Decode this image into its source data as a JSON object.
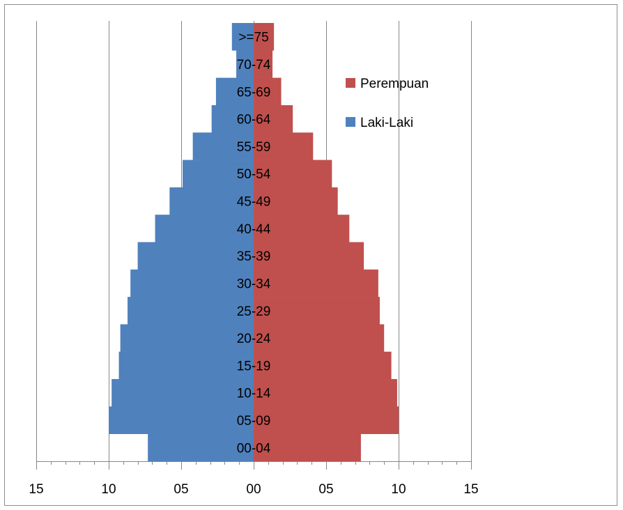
{
  "chart_data": {
    "type": "bar",
    "orientation": "horizontal",
    "layout": "population-pyramid",
    "categories": [
      "00-04",
      "05-09",
      "10-14",
      "15-19",
      "20-24",
      "25-29",
      "30-34",
      "35-39",
      "40-44",
      "45-49",
      "50-54",
      "55-59",
      "60-64",
      "65-69",
      "70-74",
      ">=75"
    ],
    "series": [
      {
        "name": "Laki-Laki",
        "side": "left",
        "color": "#4f81bd",
        "values": [
          7.3,
          10.0,
          9.8,
          9.3,
          9.2,
          8.7,
          8.5,
          8.0,
          6.8,
          5.8,
          4.9,
          4.2,
          2.9,
          2.6,
          1.2,
          1.5
        ]
      },
      {
        "name": "Perempuan",
        "side": "right",
        "color": "#c0504d",
        "values": [
          7.4,
          10.0,
          9.9,
          9.5,
          9.0,
          8.7,
          8.6,
          7.6,
          6.6,
          5.8,
          5.4,
          4.1,
          2.7,
          1.9,
          1.3,
          1.4
        ]
      }
    ],
    "xlim": [
      -15,
      15
    ],
    "x_ticks": [
      -15,
      -10,
      -5,
      0,
      5,
      10,
      15
    ],
    "x_tick_labels": [
      "15",
      "10",
      "05",
      "00",
      "05",
      "10",
      "15"
    ],
    "minor_tick_step": 1,
    "gridlines": "vertical-major",
    "gridline_color": "#868686",
    "title": "",
    "xlabel": "",
    "ylabel": "",
    "legend": {
      "position": "right",
      "entries": [
        {
          "label": "Perempuan",
          "color": "#c0504d"
        },
        {
          "label": "Laki-Laki",
          "color": "#4f81bd"
        }
      ]
    }
  }
}
